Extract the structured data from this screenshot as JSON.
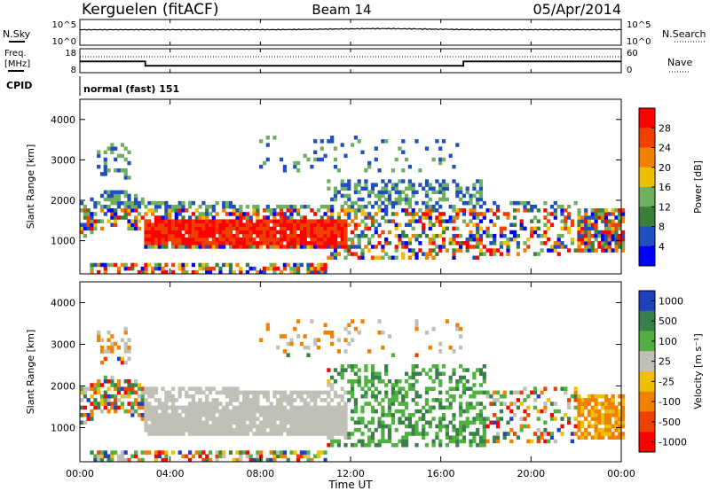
{
  "header": {
    "station": "Kerguelen (fitACF)",
    "beam": "Beam 14",
    "date": "05/Apr/2014"
  },
  "chart_data": [
    {
      "type": "line",
      "name": "noise-panel",
      "left_label": "N.Sky",
      "right_label": "N.Search",
      "left_ticks": [
        "10^5",
        "10^0"
      ],
      "right_ticks": [
        "10^5",
        "10^0"
      ]
    },
    {
      "type": "line",
      "name": "frequency-panel",
      "left_label_line1": "Freq.",
      "left_label_line2": "[MHz]",
      "right_label": "Nave",
      "left_ticks": [
        "18",
        "8"
      ],
      "right_ticks": [
        "60",
        "0"
      ],
      "frequency_mhz": {
        "x": [
          0,
          2.9,
          2.9,
          17.0,
          17.0,
          24.0
        ],
        "y": [
          12.7,
          12.7,
          10.9,
          10.9,
          12.7,
          12.7
        ]
      },
      "nave": {
        "x": [
          0,
          24
        ],
        "y": [
          40,
          40
        ]
      }
    },
    {
      "type": "text",
      "name": "cpid-strip",
      "label": "CPID",
      "value": "normal (fast) 151"
    },
    {
      "type": "heatmap",
      "name": "power",
      "ylabel": "Slant Range [km]",
      "ylim": [
        180,
        4500
      ],
      "yticks": [
        1000,
        2000,
        3000,
        4000
      ],
      "colorbar_label": "Power [dB]",
      "colorbar_ticks": [
        4,
        8,
        12,
        16,
        20,
        24,
        28
      ],
      "colorbar_range": [
        0,
        32
      ]
    },
    {
      "type": "heatmap",
      "name": "velocity",
      "ylabel": "Slant Range [km]",
      "ylim": [
        180,
        4500
      ],
      "yticks": [
        1000,
        2000,
        3000,
        4000
      ],
      "colorbar_label": "Velocity [m s⁻¹]",
      "colorbar_ticks": [
        "1000",
        "500",
        "100",
        "25",
        "-25",
        "-100",
        "-500",
        "-1000"
      ]
    }
  ],
  "xaxis": {
    "label": "Time UT",
    "range_hours": [
      0,
      24
    ],
    "ticks": [
      "00:00",
      "04:00",
      "08:00",
      "12:00",
      "16:00",
      "20:00",
      "00:00"
    ],
    "tick_hours": [
      0,
      4,
      8,
      12,
      16,
      20,
      24
    ]
  },
  "colors": {
    "power_scale": [
      "#0000ff",
      "#2050c0",
      "#3a7f3a",
      "#6fb060",
      "#f0c000",
      "#f08000",
      "#f04000",
      "#ff0000"
    ],
    "velocity_scale": [
      "#2040c0",
      "#3a7f4a",
      "#50b040",
      "#c8c8c0",
      "#f0c000",
      "#f08000",
      "#f04000",
      "#ff0000"
    ],
    "ground_scatter": "#c0c0b8"
  }
}
